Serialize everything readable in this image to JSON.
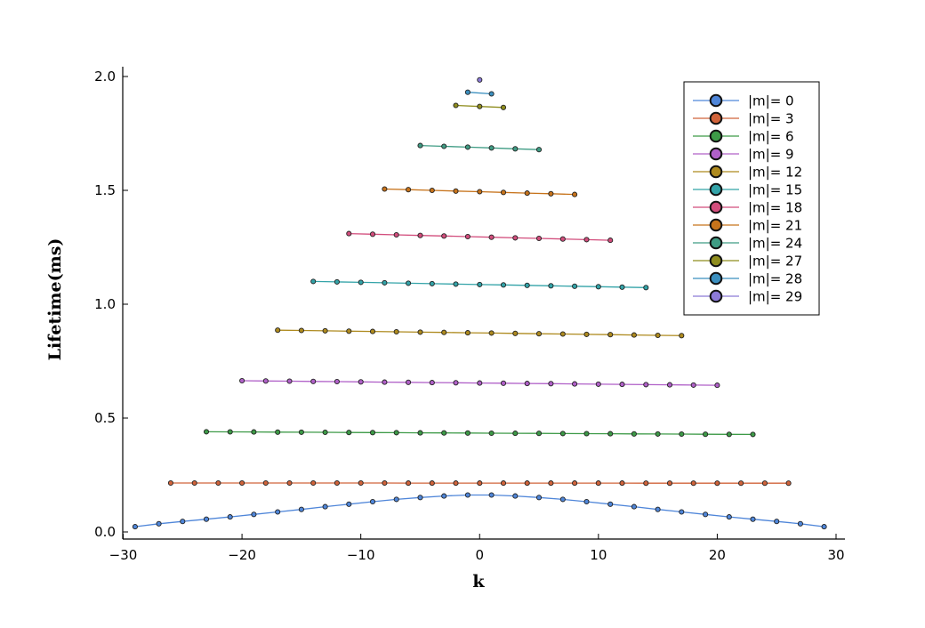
{
  "chart_data": {
    "type": "line",
    "title": "",
    "xlabel": "k",
    "ylabel": "Lifetime(ms)",
    "xlim": [
      -30,
      30
    ],
    "ylim": [
      0,
      2
    ],
    "xticks": [
      -30,
      -20,
      -10,
      0,
      10,
      20,
      30
    ],
    "xtick_labels": [
      "−30",
      "−20",
      "−10",
      "0",
      "10",
      "20",
      "30"
    ],
    "yticks": [
      0.0,
      0.5,
      1.0,
      1.5,
      2.0
    ],
    "ytick_labels": [
      "0.0",
      "0.5",
      "1.0",
      "1.5",
      "2.0"
    ],
    "grid": false,
    "legend_position": "top-right",
    "series": [
      {
        "name": "|m|= 0",
        "color": "#4f86d9",
        "k_min": -29,
        "k_max": 29,
        "step": 2,
        "y": [
          0.023,
          0.036,
          0.046,
          0.056,
          0.066,
          0.077,
          0.088,
          0.099,
          0.111,
          0.122,
          0.133,
          0.143,
          0.151,
          0.158,
          0.162,
          0.162,
          0.158,
          0.151,
          0.143,
          0.133,
          0.122,
          0.111,
          0.099,
          0.088,
          0.077,
          0.066,
          0.056,
          0.046,
          0.036,
          0.023
        ]
      },
      {
        "name": "|m|= 3",
        "color": "#d1633a",
        "k_min": -26,
        "k_max": 26,
        "step": 2,
        "y_start": 0.215,
        "y_end": 0.214
      },
      {
        "name": "|m|= 6",
        "color": "#3d9a47",
        "k_min": -23,
        "k_max": 23,
        "step": 2,
        "y_start": 0.44,
        "y_end": 0.428
      },
      {
        "name": "|m|= 9",
        "color": "#b060c8",
        "k_min": -20,
        "k_max": 20,
        "step": 2,
        "y_start": 0.664,
        "y_end": 0.644
      },
      {
        "name": "|m|= 12",
        "color": "#ae8a1e",
        "k_min": -17,
        "k_max": 17,
        "step": 2,
        "y_start": 0.886,
        "y_end": 0.862
      },
      {
        "name": "|m|= 15",
        "color": "#33a3a8",
        "k_min": -14,
        "k_max": 14,
        "step": 2,
        "y_start": 1.1,
        "y_end": 1.073
      },
      {
        "name": "|m|= 18",
        "color": "#d24d7c",
        "k_min": -11,
        "k_max": 11,
        "step": 2,
        "y_start": 1.31,
        "y_end": 1.281
      },
      {
        "name": "|m|= 21",
        "color": "#c7731b",
        "k_min": -8,
        "k_max": 8,
        "step": 2,
        "y_start": 1.506,
        "y_end": 1.482
      },
      {
        "name": "|m|= 24",
        "color": "#3f9c84",
        "k_min": -5,
        "k_max": 5,
        "step": 2,
        "y_start": 1.697,
        "y_end": 1.679
      },
      {
        "name": "|m|= 27",
        "color": "#8f8d1e",
        "k_min": -2,
        "k_max": 2,
        "step": 2,
        "y_start": 1.873,
        "y_end": 1.864
      },
      {
        "name": "|m|= 28",
        "color": "#3b8fbf",
        "k_min": -1,
        "k_max": 1,
        "step": 2,
        "y_start": 1.931,
        "y_end": 1.924
      },
      {
        "name": "|m|= 29",
        "color": "#8c7ad8",
        "k_min": 0,
        "k_max": 0,
        "step": 2,
        "y_start": 1.985,
        "y_end": 1.985
      }
    ]
  }
}
